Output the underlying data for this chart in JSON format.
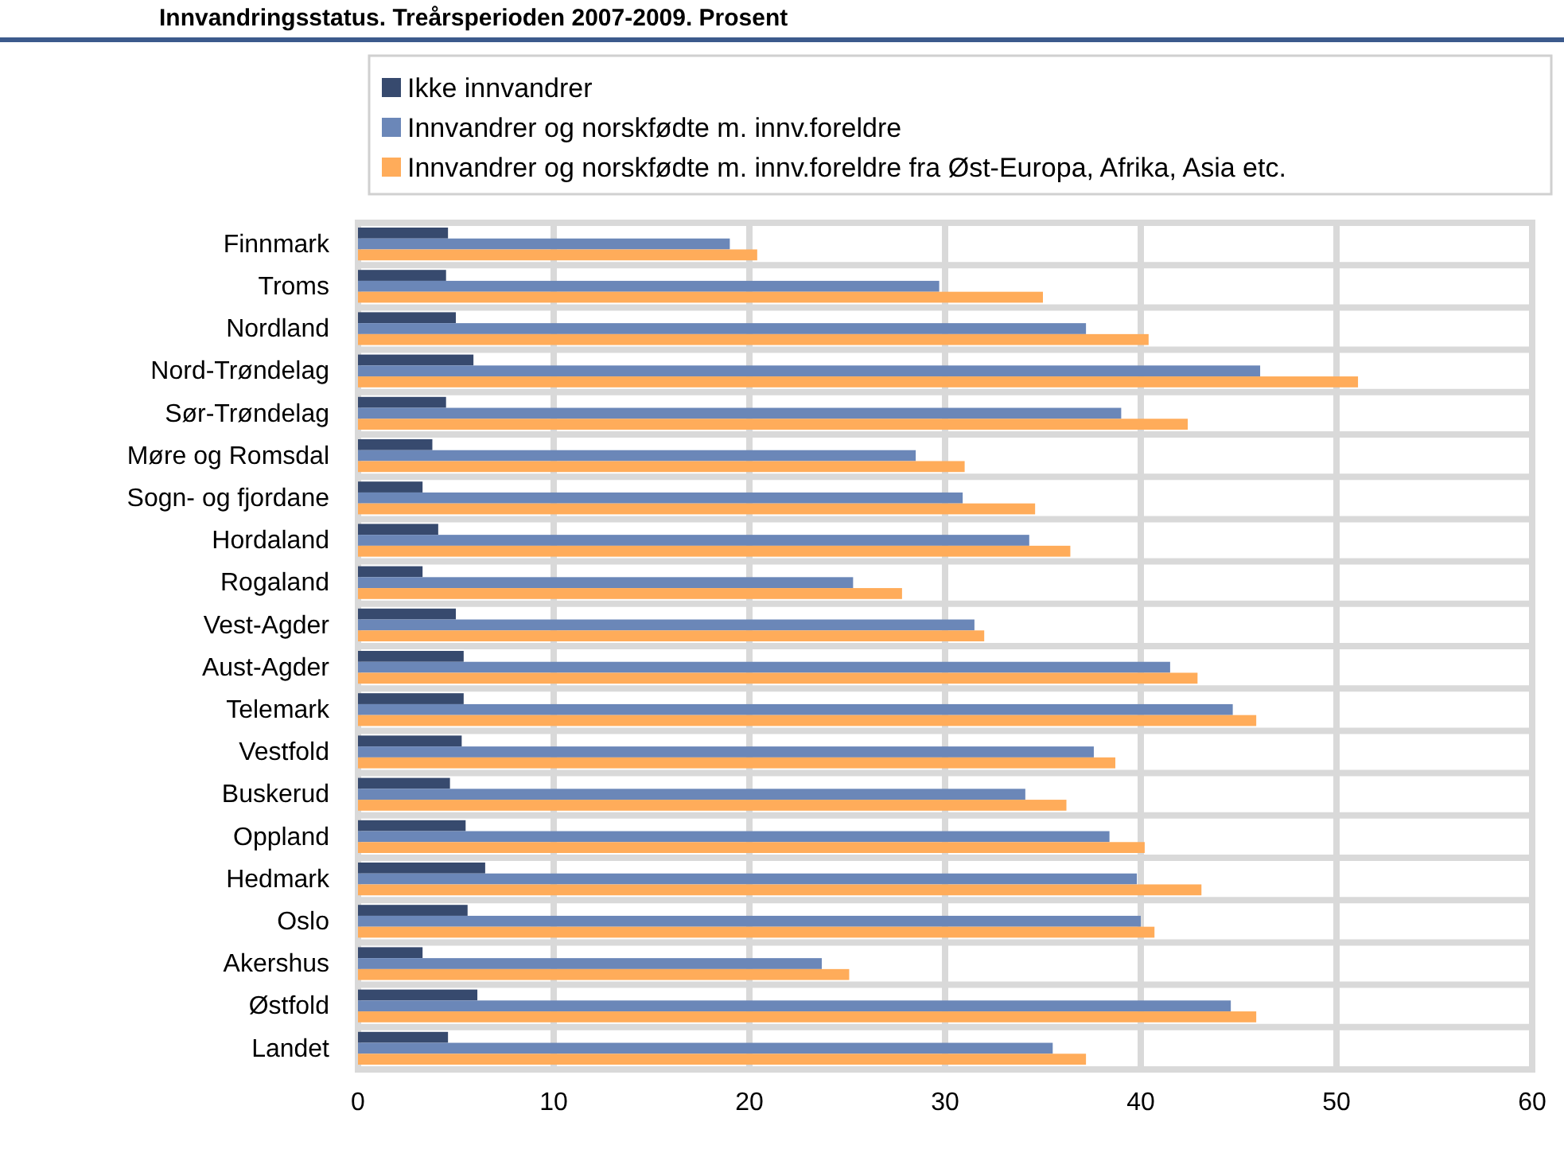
{
  "chart_data": {
    "type": "bar",
    "orientation": "horizontal",
    "title": "Innvandringsstatus. Treårsperioden 2007-2009. Prosent",
    "categories": [
      "Finnmark",
      "Troms",
      "Nordland",
      "Nord-Trøndelag",
      "Sør-Trøndelag",
      "Møre og Romsdal",
      "Sogn- og fjordane",
      "Hordaland",
      "Rogaland",
      "Vest-Agder",
      "Aust-Agder",
      "Telemark",
      "Vestfold",
      "Buskerud",
      "Oppland",
      "Hedmark",
      "Oslo",
      "Akershus",
      "Østfold",
      "Landet"
    ],
    "series": [
      {
        "name": "Ikke innvandrer",
        "color": "#374a6e",
        "values": [
          4.6,
          4.5,
          5.0,
          5.9,
          4.5,
          3.8,
          3.3,
          4.1,
          3.3,
          5.0,
          5.4,
          5.4,
          5.3,
          4.7,
          5.5,
          6.5,
          5.6,
          3.3,
          6.1,
          4.6
        ]
      },
      {
        "name": "Innvandrer og norskfødte m. innv.foreldre",
        "color": "#6b87b8",
        "values": [
          19.0,
          29.7,
          37.2,
          46.1,
          39.0,
          28.5,
          30.9,
          34.3,
          25.3,
          31.5,
          41.5,
          44.7,
          37.6,
          34.1,
          38.4,
          39.8,
          40.0,
          23.7,
          44.6,
          35.5
        ]
      },
      {
        "name": "Innvandrer og norskfødte m. innv.foreldre fra Øst-Europa, Afrika, Asia etc.",
        "color": "#ffac5a",
        "values": [
          20.4,
          35.0,
          40.4,
          51.1,
          42.4,
          31.0,
          34.6,
          36.4,
          27.8,
          32.0,
          42.9,
          45.9,
          38.7,
          36.2,
          40.2,
          43.1,
          40.7,
          25.1,
          45.9,
          37.2
        ]
      }
    ],
    "xlim": [
      0,
      60
    ],
    "xticks": [
      0,
      10,
      20,
      30,
      40,
      50,
      60
    ],
    "grid": true,
    "legend": "top"
  }
}
